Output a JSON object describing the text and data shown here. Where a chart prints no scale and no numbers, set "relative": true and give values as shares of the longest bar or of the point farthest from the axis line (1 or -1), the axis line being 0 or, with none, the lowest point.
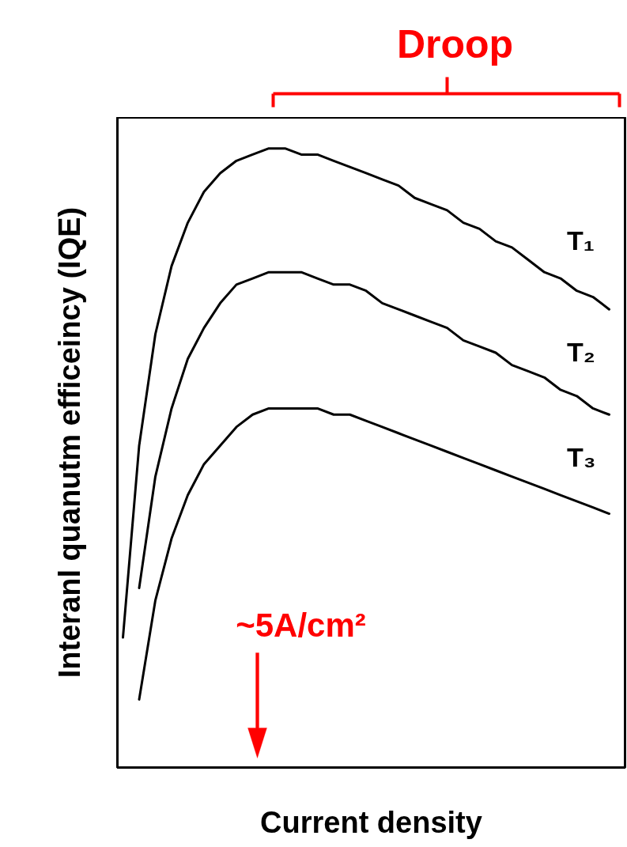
{
  "chart_data": {
    "type": "line",
    "relative": true,
    "xlabel": "Current density",
    "ylabel": "Interanl quanutm efficeincy (IQE)",
    "categories": [
      null,
      null,
      null,
      null,
      null,
      null,
      null,
      null,
      null,
      null,
      null,
      null,
      null,
      null,
      null,
      null,
      null,
      null,
      null,
      null,
      null,
      null,
      null,
      null,
      null,
      null,
      null,
      null,
      null,
      null,
      null
    ],
    "series": [
      {
        "name": "T₁",
        "color": "#000000",
        "values": [
          0.21,
          0.52,
          0.7,
          0.81,
          0.88,
          0.93,
          0.96,
          0.98,
          0.99,
          1.0,
          1.0,
          0.99,
          0.99,
          0.98,
          0.97,
          0.96,
          0.95,
          0.94,
          0.92,
          0.91,
          0.9,
          0.88,
          0.87,
          0.85,
          0.84,
          0.82,
          0.8,
          0.79,
          0.77,
          0.76,
          0.74
        ]
      },
      {
        "name": "T₂",
        "color": "#000000",
        "values": [
          null,
          0.29,
          0.47,
          0.58,
          0.66,
          0.71,
          0.75,
          0.78,
          0.79,
          0.8,
          0.8,
          0.8,
          0.79,
          0.78,
          0.78,
          0.77,
          0.75,
          0.74,
          0.73,
          0.72,
          0.71,
          0.69,
          0.68,
          0.67,
          0.65,
          0.64,
          0.63,
          0.61,
          0.6,
          0.58,
          0.57
        ]
      },
      {
        "name": "T₃",
        "color": "#000000",
        "values": [
          null,
          0.11,
          0.27,
          0.37,
          0.44,
          0.49,
          0.52,
          0.55,
          0.57,
          0.58,
          0.58,
          0.58,
          0.58,
          0.57,
          0.57,
          0.56,
          0.55,
          0.54,
          0.53,
          0.52,
          0.51,
          0.5,
          0.49,
          0.48,
          0.47,
          0.46,
          0.45,
          0.44,
          0.43,
          0.42,
          0.41
        ]
      }
    ],
    "annotations": [
      "Droop",
      "~5A/cm²"
    ],
    "line_style": "solid",
    "marker": "none"
  }
}
